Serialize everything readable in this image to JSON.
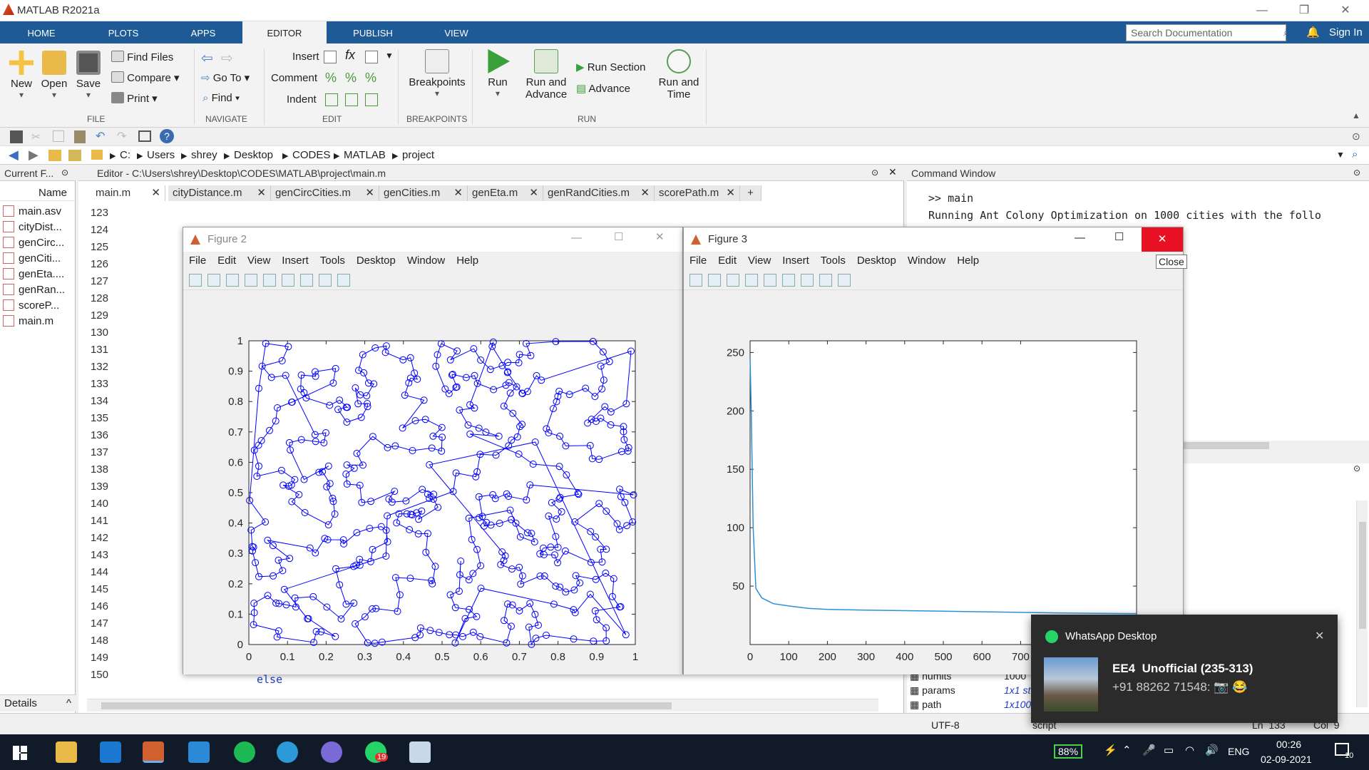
{
  "window": {
    "title": "MATLAB R2021a"
  },
  "tabs": [
    "HOME",
    "PLOTS",
    "APPS",
    "EDITOR",
    "PUBLISH",
    "VIEW"
  ],
  "search": {
    "placeholder": "Search Documentation"
  },
  "signin": "Sign In",
  "ribbon": {
    "file": {
      "new": "New",
      "open": "Open",
      "save": "Save",
      "find_files": "Find Files",
      "compare": "Compare",
      "print": "Print",
      "label": "FILE"
    },
    "navigate": {
      "goto": "Go To",
      "find": "Find",
      "label": "NAVIGATE"
    },
    "edit": {
      "insert": "Insert",
      "comment": "Comment",
      "indent": "Indent",
      "label": "EDIT"
    },
    "breakpoints": {
      "btn": "Breakpoints",
      "label": "BREAKPOINTS"
    },
    "run": {
      "run": "Run",
      "run_advance_1": "Run and",
      "run_advance_2": "Advance",
      "run_section": "Run Section",
      "advance": "Advance",
      "run_time_1": "Run and",
      "run_time_2": "Time",
      "label": "RUN"
    }
  },
  "path": [
    "C:",
    "Users",
    "shrey",
    "Desktop",
    "CODES",
    "MATLAB",
    "project"
  ],
  "current_folder": {
    "title": "Current F...",
    "col": "Name",
    "files": [
      "main.asv",
      "cityDist...",
      "genCirc...",
      "genCiti...",
      "genEta....",
      "genRan...",
      "scoreP...",
      "main.m"
    ]
  },
  "details": "Details",
  "editor": {
    "title": "Editor - C:\\Users\\shrey\\Desktop\\CODES\\MATLAB\\project\\main.m",
    "tabs": [
      "main.m",
      "cityDistance.m",
      "genCircCities.m",
      "genCities.m",
      "genEta.m",
      "genRandCities.m",
      "scorePath.m"
    ],
    "lines": [
      "123",
      "124",
      "125",
      "126",
      "127",
      "128",
      "129",
      "130",
      "131",
      "132",
      "133",
      "134",
      "135",
      "136",
      "137",
      "138",
      "139",
      "140",
      "141",
      "142",
      "143",
      "144",
      "145",
      "146",
      "147",
      "148",
      "149",
      "150"
    ],
    "code_else": "else"
  },
  "command_window": {
    "title": "Command Window",
    "line1": ">> main",
    "line2": "Running Ant Colony Optimization on 1000 cities with the follo"
  },
  "workspace": {
    "vars": [
      {
        "name": "numits",
        "value": "1000"
      },
      {
        "name": "params",
        "value": "1x1 st"
      },
      {
        "name": "path",
        "value": "1x100"
      }
    ]
  },
  "status": {
    "encoding": "UTF-8",
    "type": "script",
    "ln": "Ln  133",
    "col": "Col  9"
  },
  "figure2": {
    "title": "Figure 2",
    "menu": [
      "File",
      "Edit",
      "View",
      "Insert",
      "Tools",
      "Desktop",
      "Window",
      "Help"
    ]
  },
  "figure3": {
    "title": "Figure 3",
    "menu": [
      "File",
      "Edit",
      "View",
      "Insert",
      "Tools",
      "Desktop",
      "Window",
      "Help"
    ],
    "tooltip": "Close"
  },
  "chart_data": [
    {
      "type": "scatter",
      "title": "",
      "xlabel": "",
      "ylabel": "",
      "xlim": [
        0,
        1
      ],
      "ylim": [
        0,
        1
      ],
      "xticks": [
        "0",
        "0.1",
        "0.2",
        "0.3",
        "0.4",
        "0.5",
        "0.6",
        "0.7",
        "0.8",
        "0.9",
        "1"
      ],
      "yticks": [
        "0",
        "0.1",
        "0.2",
        "0.3",
        "0.4",
        "0.5",
        "0.6",
        "0.7",
        "0.8",
        "0.9",
        "1"
      ],
      "series": [
        {
          "marker": "circle",
          "connected": true,
          "color": "#0000ff",
          "point_count": 1000
        }
      ]
    },
    {
      "type": "line",
      "title": "",
      "xlabel": "",
      "ylabel": "",
      "xlim": [
        0,
        1000
      ],
      "ylim": [
        0,
        260
      ],
      "xticks": [
        "0",
        "100",
        "200",
        "300",
        "400",
        "500",
        "600",
        "700"
      ],
      "yticks": [
        "50",
        "100",
        "150",
        "200",
        "250"
      ],
      "series": [
        {
          "color": "#2b8fd6",
          "x": [
            0,
            3,
            8,
            15,
            30,
            60,
            100,
            150,
            200,
            300,
            400,
            500,
            600,
            700,
            800,
            1000
          ],
          "y": [
            245,
            200,
            100,
            48,
            40,
            35,
            33,
            31,
            30,
            29.5,
            29,
            28.5,
            28,
            27.5,
            27,
            26.5
          ]
        }
      ]
    }
  ],
  "taskbar": {
    "battery": "88%",
    "lang": "ENG",
    "time": "00:26",
    "date": "02-09-2021",
    "notif_count": "10",
    "whatsapp_badge": "19"
  },
  "toast": {
    "app": "WhatsApp Desktop",
    "title": "EE4  Unofficial (235-313)",
    "body": "+91 88262 71548: 📷 😂"
  },
  "colors": {
    "accent": "#1e5a96",
    "plot_blue": "#0000ff",
    "line_blue": "#2b8fd6",
    "close_red": "#e81123"
  }
}
